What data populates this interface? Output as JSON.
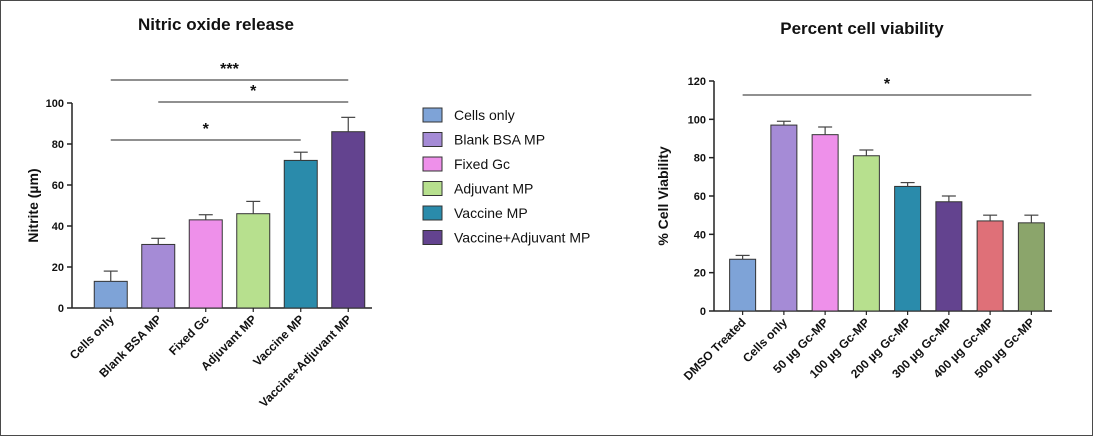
{
  "chart_data": [
    {
      "type": "bar",
      "title": "Nitric oxide release",
      "xlabel": "",
      "ylabel": "Nitrite (µm)",
      "ylim": [
        0,
        100
      ],
      "yticks": [
        0,
        20,
        40,
        60,
        80,
        100
      ],
      "grid": false,
      "categories": [
        "Cells only",
        "Blank BSA MP",
        "Fixed Gc",
        "Adjuvant MP",
        "Vaccine MP",
        "Vaccine+Adjuvant MP"
      ],
      "values": [
        13,
        31,
        43,
        46,
        72,
        86
      ],
      "errors": [
        5,
        3,
        2.5,
        6,
        4,
        7
      ],
      "colors": [
        "#7ea3d7",
        "#a58bd6",
        "#ee90ea",
        "#b7e08e",
        "#2a8bab",
        "#63438f"
      ],
      "legend": {
        "position": "right",
        "entries": [
          "Cells only",
          "Blank BSA MP",
          "Fixed Gc",
          "Adjuvant MP",
          "Vaccine MP",
          "Vaccine+Adjuvant MP"
        ]
      },
      "significance": [
        {
          "label": "***",
          "from": "Cells only",
          "to": "Vaccine+Adjuvant MP"
        },
        {
          "label": "*",
          "from": "Blank BSA MP",
          "to": "Vaccine+Adjuvant MP"
        },
        {
          "label": "*",
          "from": "Cells only",
          "to": "Vaccine MP"
        }
      ]
    },
    {
      "type": "bar",
      "title": "Percent cell viability",
      "xlabel": "",
      "ylabel": "% Cell Viability",
      "ylim": [
        0,
        120
      ],
      "yticks": [
        0,
        20,
        40,
        60,
        80,
        100,
        120
      ],
      "grid": false,
      "categories": [
        "DMSO Treated",
        "Cells only",
        "50 µg Gc-MP",
        "100 µg Gc-MP",
        "200 µg Gc-MP",
        "300 µg Gc-MP",
        "400 µg Gc-MP",
        "500 µg Gc-MP"
      ],
      "values": [
        27,
        97,
        92,
        81,
        65,
        57,
        47,
        46
      ],
      "errors": [
        2,
        2,
        4,
        3,
        2,
        3,
        3,
        4
      ],
      "colors": [
        "#7ea3d7",
        "#a58bd6",
        "#ee90ea",
        "#b7e08e",
        "#2a8bab",
        "#63438f",
        "#df7078",
        "#8ba56b"
      ],
      "significance": [
        {
          "label": "*",
          "from": "DMSO Treated",
          "to": "500 µg Gc-MP"
        }
      ]
    }
  ]
}
